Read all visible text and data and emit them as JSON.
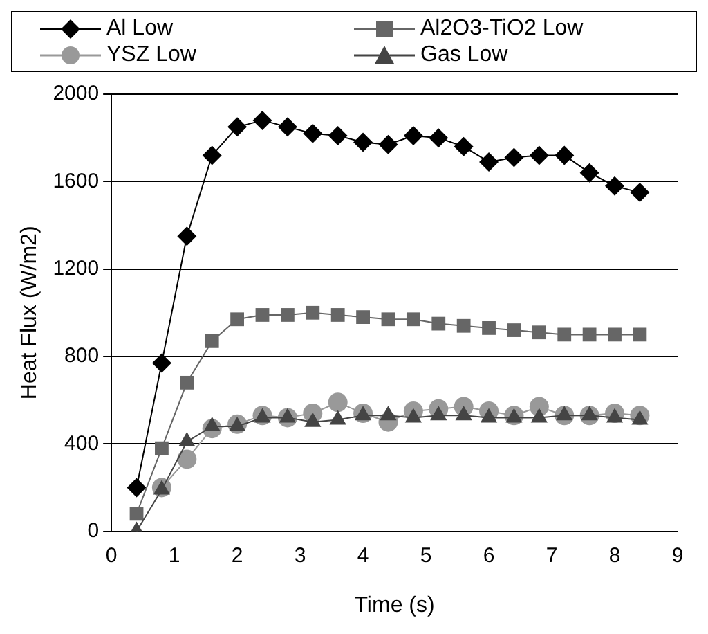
{
  "chart_data": {
    "type": "line",
    "xlabel": "Time (s)",
    "ylabel": "Heat Flux (W/m2)",
    "x": [
      0.4,
      0.8,
      1.2,
      1.6,
      2.0,
      2.4,
      2.8,
      3.2,
      3.6,
      4.0,
      4.4,
      4.8,
      5.2,
      5.6,
      6.0,
      6.4,
      6.8,
      7.2,
      7.6,
      8.0,
      8.4
    ],
    "series": [
      {
        "name": "Al Low",
        "color": "#000000",
        "marker": "diamond",
        "values": [
          200,
          770,
          1350,
          1720,
          1850,
          1880,
          1850,
          1820,
          1810,
          1780,
          1770,
          1810,
          1800,
          1760,
          1690,
          1710,
          1720,
          1720,
          1640,
          1580,
          1550
        ]
      },
      {
        "name": "Al2O3-TiO2 Low",
        "color": "#666666",
        "marker": "square",
        "values": [
          80,
          380,
          680,
          870,
          970,
          990,
          990,
          1000,
          990,
          980,
          970,
          970,
          950,
          940,
          930,
          920,
          910,
          900,
          900,
          900,
          900
        ]
      },
      {
        "name": "YSZ Low",
        "color": "#999999",
        "marker": "circle",
        "values": [
          null,
          200,
          330,
          470,
          490,
          530,
          520,
          540,
          590,
          540,
          500,
          550,
          560,
          570,
          550,
          530,
          570,
          530,
          530,
          540,
          530
        ]
      },
      {
        "name": "Gas Low",
        "color": "#444444",
        "marker": "triangle",
        "values": [
          0,
          190,
          410,
          480,
          480,
          520,
          520,
          500,
          510,
          530,
          530,
          520,
          530,
          530,
          520,
          520,
          520,
          530,
          530,
          520,
          510
        ]
      }
    ],
    "xlim": [
      0,
      9
    ],
    "xticks": [
      0,
      1,
      2,
      3,
      4,
      5,
      6,
      7,
      8,
      9
    ],
    "ylim": [
      0,
      2000
    ],
    "yticks": [
      0,
      400,
      800,
      1200,
      1600,
      2000
    ],
    "grid": "y",
    "legend": "top",
    "line_style": "solid"
  }
}
